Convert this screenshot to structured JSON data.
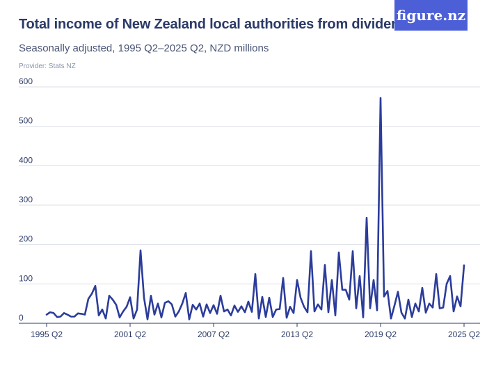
{
  "header": {
    "title": "Total income of New Zealand local authorities from dividends",
    "subtitle": "Seasonally adjusted, 1995 Q2–2025 Q2, NZD millions",
    "provider": "Provider: Stats NZ",
    "logo": "figure.nz"
  },
  "colors": {
    "line": "#2b3c9a",
    "grid": "#dcdfe6",
    "text": "#2b3a67",
    "logo_bg": "#4c5fd7"
  },
  "chart_data": {
    "type": "line",
    "title": "Total income of New Zealand local authorities from dividends",
    "subtitle": "Seasonally adjusted, 1995 Q2–2025 Q2, NZD millions",
    "xlabel": "",
    "ylabel": "",
    "ylim": [
      0,
      600
    ],
    "yticks": [
      0,
      100,
      200,
      300,
      400,
      500,
      600
    ],
    "xtick_labels": [
      "1995 Q2",
      "2001 Q2",
      "2007 Q2",
      "2013 Q2",
      "2019 Q2",
      "2025 Q2"
    ],
    "x_start": "1995 Q2",
    "x_end": "2025 Q2",
    "grid": true,
    "legend": "none",
    "series": [
      {
        "values": [
          22,
          28,
          26,
          16,
          17,
          26,
          22,
          17,
          17,
          25,
          24,
          22,
          62,
          75,
          95,
          20,
          35,
          12,
          70,
          60,
          47,
          15,
          30,
          42,
          66,
          12,
          35,
          185,
          65,
          10,
          70,
          22,
          50,
          15,
          52,
          56,
          48,
          17,
          30,
          50,
          77,
          10,
          47,
          35,
          50,
          17,
          48,
          26,
          46,
          24,
          70,
          30,
          35,
          20,
          45,
          29,
          43,
          28,
          55,
          29,
          125,
          12,
          67,
          16,
          65,
          16,
          35,
          36,
          115,
          14,
          42,
          26,
          110,
          65,
          42,
          28,
          183,
          30,
          48,
          35,
          148,
          28,
          110,
          20,
          180,
          85,
          85,
          60,
          183,
          38,
          120,
          15,
          268,
          38,
          110,
          33,
          572,
          68,
          82,
          12,
          45,
          80,
          27,
          12,
          60,
          16,
          50,
          30,
          90,
          27,
          50,
          40,
          125,
          38,
          40,
          100,
          120,
          30,
          68,
          43,
          147
        ]
      }
    ]
  }
}
